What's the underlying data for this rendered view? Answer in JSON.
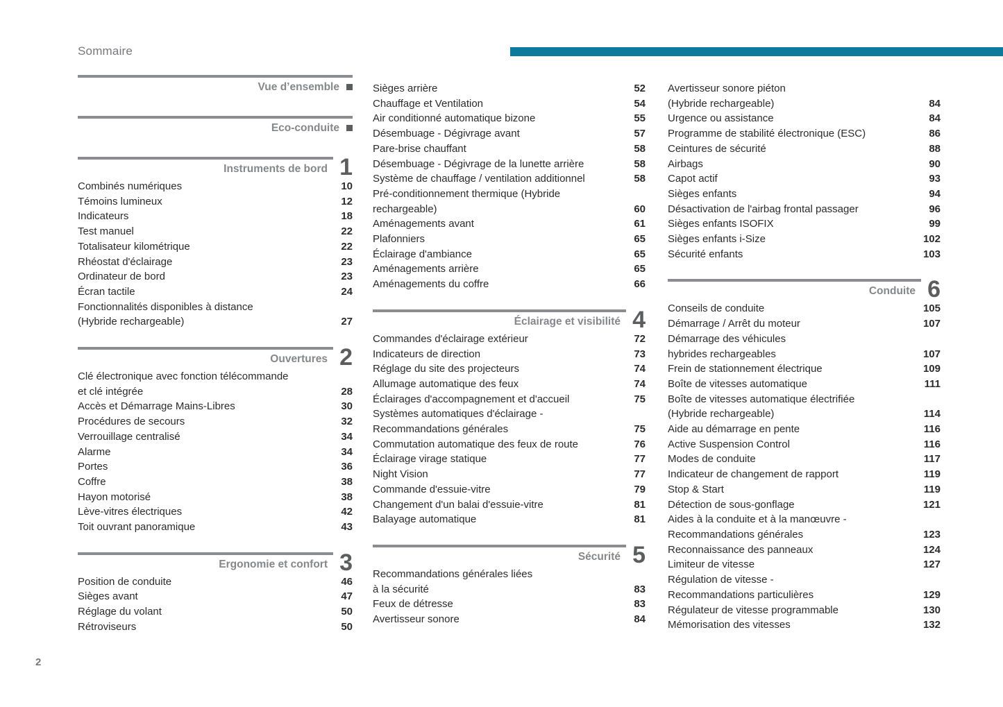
{
  "header": {
    "title": "Sommaire"
  },
  "footer": {
    "page_number": "2"
  },
  "colors": {
    "accent_teal": "#0e7a9b",
    "rule_gray": "#8a8c8f",
    "section_title_gray": "#85878a",
    "section_number_gray": "#5c5d5f",
    "entry_text": "#2b2b2d"
  },
  "columns": [
    {
      "blocks": [
        {
          "title": "Vue d’ensemble",
          "marker": "square"
        },
        {
          "title": "Eco-conduite",
          "marker": "square"
        },
        {
          "title": "Instruments de bord",
          "number": "1",
          "entries": [
            {
              "lines": [
                "Combinés numériques"
              ],
              "page": "10"
            },
            {
              "lines": [
                "Témoins lumineux"
              ],
              "page": "12"
            },
            {
              "lines": [
                "Indicateurs"
              ],
              "page": "18"
            },
            {
              "lines": [
                "Test manuel"
              ],
              "page": "22"
            },
            {
              "lines": [
                "Totalisateur kilométrique"
              ],
              "page": "22"
            },
            {
              "lines": [
                "Rhéostat d'éclairage"
              ],
              "page": "23"
            },
            {
              "lines": [
                "Ordinateur de bord"
              ],
              "page": "23"
            },
            {
              "lines": [
                "Écran tactile"
              ],
              "page": "24"
            },
            {
              "lines": [
                "Fonctionnalités disponibles à distance",
                "(Hybride rechargeable)"
              ],
              "page": "27"
            }
          ]
        },
        {
          "title": "Ouvertures",
          "number": "2",
          "entries": [
            {
              "lines": [
                "Clé électronique avec fonction télécommande",
                "et clé intégrée"
              ],
              "page": "28"
            },
            {
              "lines": [
                "Accès et Démarrage Mains-Libres"
              ],
              "page": "30"
            },
            {
              "lines": [
                "Procédures de secours"
              ],
              "page": "32"
            },
            {
              "lines": [
                "Verrouillage centralisé"
              ],
              "page": "34"
            },
            {
              "lines": [
                "Alarme"
              ],
              "page": "34"
            },
            {
              "lines": [
                "Portes"
              ],
              "page": "36"
            },
            {
              "lines": [
                "Coffre"
              ],
              "page": "38"
            },
            {
              "lines": [
                "Hayon motorisé"
              ],
              "page": "38"
            },
            {
              "lines": [
                "Lève-vitres électriques"
              ],
              "page": "42"
            },
            {
              "lines": [
                "Toit ouvrant panoramique"
              ],
              "page": "43"
            }
          ]
        },
        {
          "title": "Ergonomie et confort",
          "number": "3",
          "entries": [
            {
              "lines": [
                "Position de conduite"
              ],
              "page": "46"
            },
            {
              "lines": [
                "Sièges avant"
              ],
              "page": "47"
            },
            {
              "lines": [
                "Réglage du volant"
              ],
              "page": "50"
            },
            {
              "lines": [
                "Rétroviseurs"
              ],
              "page": "50"
            }
          ]
        }
      ]
    },
    {
      "blocks": [
        {
          "entries": [
            {
              "lines": [
                "Sièges arrière"
              ],
              "page": "52"
            },
            {
              "lines": [
                "Chauffage et Ventilation"
              ],
              "page": "54"
            },
            {
              "lines": [
                "Air conditionné automatique bizone"
              ],
              "page": "55"
            },
            {
              "lines": [
                "Désembuage - Dégivrage avant"
              ],
              "page": "57"
            },
            {
              "lines": [
                "Pare-brise chauffant"
              ],
              "page": "58"
            },
            {
              "lines": [
                "Désembuage - Dégivrage de la lunette arrière"
              ],
              "page": "58"
            },
            {
              "lines": [
                "Système de chauffage / ventilation additionnel"
              ],
              "page": "58"
            },
            {
              "lines": [
                "Pré-conditionnement thermique (Hybride",
                "rechargeable)"
              ],
              "page": "60"
            },
            {
              "lines": [
                "Aménagements avant"
              ],
              "page": "61"
            },
            {
              "lines": [
                "Plafonniers"
              ],
              "page": "65"
            },
            {
              "lines": [
                "Éclairage d'ambiance"
              ],
              "page": "65"
            },
            {
              "lines": [
                "Aménagements arrière"
              ],
              "page": "65"
            },
            {
              "lines": [
                "Aménagements du coffre"
              ],
              "page": "66"
            }
          ]
        },
        {
          "title": "Éclairage et visibilité",
          "number": "4",
          "entries": [
            {
              "lines": [
                "Commandes d'éclairage extérieur"
              ],
              "page": "72"
            },
            {
              "lines": [
                "Indicateurs de direction"
              ],
              "page": "73"
            },
            {
              "lines": [
                "Réglage du site des projecteurs"
              ],
              "page": "74"
            },
            {
              "lines": [
                "Allumage automatique des feux"
              ],
              "page": "74"
            },
            {
              "lines": [
                "Éclairages d'accompagnement et d'accueil"
              ],
              "page": "75"
            },
            {
              "lines": [
                "Systèmes automatiques d'éclairage -",
                "Recommandations générales"
              ],
              "page": "75"
            },
            {
              "lines": [
                "Commutation automatique des feux de route"
              ],
              "page": "76"
            },
            {
              "lines": [
                "Éclairage virage statique"
              ],
              "page": "77"
            },
            {
              "lines": [
                "Night Vision"
              ],
              "page": "77"
            },
            {
              "lines": [
                "Commande d'essuie-vitre"
              ],
              "page": "79"
            },
            {
              "lines": [
                "Changement d'un balai d'essuie-vitre"
              ],
              "page": "81"
            },
            {
              "lines": [
                "Balayage automatique"
              ],
              "page": "81"
            }
          ]
        },
        {
          "title": "Sécurité",
          "number": "5",
          "entries": [
            {
              "lines": [
                "Recommandations générales liées",
                "à la sécurité"
              ],
              "page": "83"
            },
            {
              "lines": [
                "Feux de détresse"
              ],
              "page": "83"
            },
            {
              "lines": [
                "Avertisseur sonore"
              ],
              "page": "84"
            }
          ]
        }
      ]
    },
    {
      "blocks": [
        {
          "entries": [
            {
              "lines": [
                "Avertisseur sonore piéton",
                "(Hybride rechargeable)"
              ],
              "page": "84"
            },
            {
              "lines": [
                "Urgence ou assistance"
              ],
              "page": "84"
            },
            {
              "lines": [
                "Programme de stabilité électronique (ESC)"
              ],
              "page": "86"
            },
            {
              "lines": [
                "Ceintures de sécurité"
              ],
              "page": "88"
            },
            {
              "lines": [
                "Airbags"
              ],
              "page": "90"
            },
            {
              "lines": [
                "Capot actif"
              ],
              "page": "93"
            },
            {
              "lines": [
                "Sièges enfants"
              ],
              "page": "94"
            },
            {
              "lines": [
                "Désactivation de l'airbag frontal passager"
              ],
              "page": "96"
            },
            {
              "lines": [
                "Sièges enfants ISOFIX"
              ],
              "page": "99"
            },
            {
              "lines": [
                "Sièges enfants i-Size"
              ],
              "page": "102"
            },
            {
              "lines": [
                "Sécurité enfants"
              ],
              "page": "103"
            }
          ]
        },
        {
          "title": "Conduite",
          "number": "6",
          "entries": [
            {
              "lines": [
                "Conseils de conduite"
              ],
              "page": "105"
            },
            {
              "lines": [
                "Démarrage / Arrêt du moteur"
              ],
              "page": "107"
            },
            {
              "lines": [
                "Démarrage des véhicules",
                "hybrides rechargeables"
              ],
              "page": "107"
            },
            {
              "lines": [
                "Frein de stationnement électrique"
              ],
              "page": "109"
            },
            {
              "lines": [
                "Boîte de vitesses automatique"
              ],
              "page": "111"
            },
            {
              "lines": [
                "Boîte de vitesses automatique électrifiée",
                "(Hybride rechargeable)"
              ],
              "page": "114"
            },
            {
              "lines": [
                "Aide au démarrage en pente"
              ],
              "page": "116"
            },
            {
              "lines": [
                "Active Suspension Control"
              ],
              "page": "116"
            },
            {
              "lines": [
                "Modes de conduite"
              ],
              "page": "117"
            },
            {
              "lines": [
                "Indicateur de changement de rapport"
              ],
              "page": "119"
            },
            {
              "lines": [
                "Stop & Start"
              ],
              "page": "119"
            },
            {
              "lines": [
                "Détection de sous-gonflage"
              ],
              "page": "121"
            },
            {
              "lines": [
                "Aides à la conduite et à la manœuvre -",
                "Recommandations générales"
              ],
              "page": "123"
            },
            {
              "lines": [
                "Reconnaissance des panneaux"
              ],
              "page": "124"
            },
            {
              "lines": [
                "Limiteur de vitesse"
              ],
              "page": "127"
            },
            {
              "lines": [
                "Régulation de vitesse -",
                "Recommandations particulières"
              ],
              "page": "129"
            },
            {
              "lines": [
                "Régulateur de vitesse programmable"
              ],
              "page": "130"
            },
            {
              "lines": [
                "Mémorisation des vitesses"
              ],
              "page": "132"
            }
          ]
        }
      ]
    }
  ]
}
